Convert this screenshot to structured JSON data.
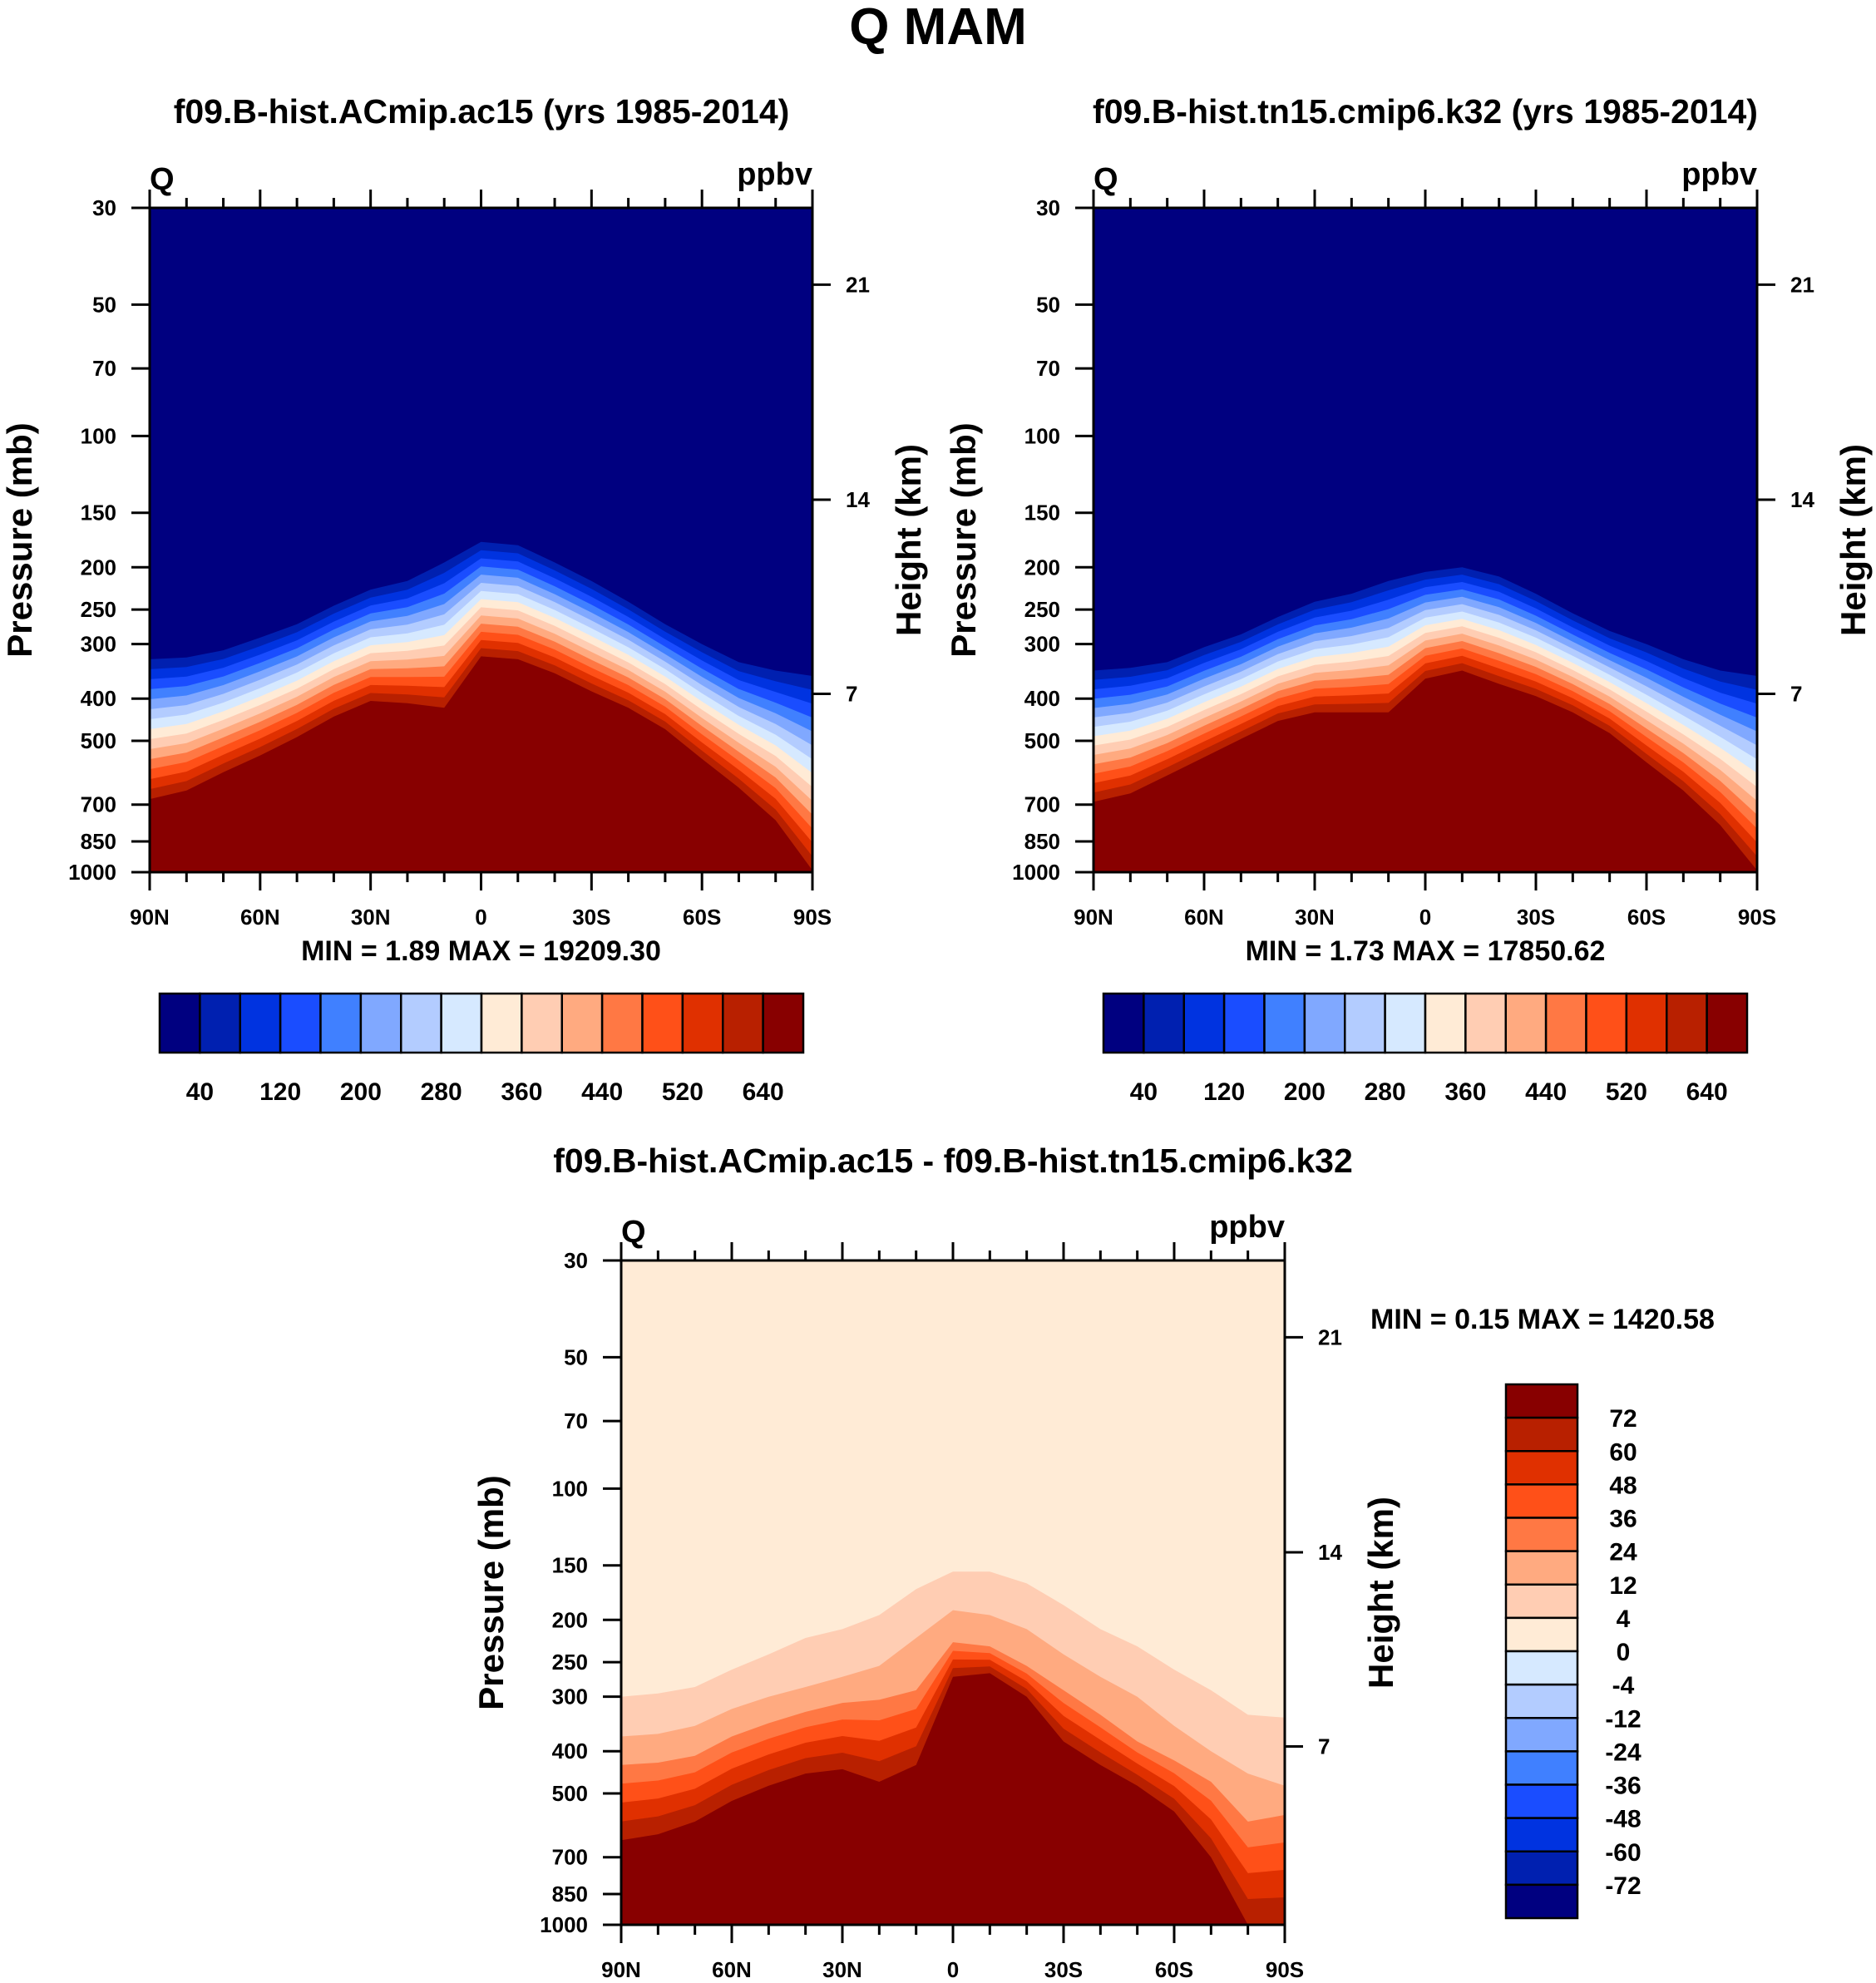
{
  "title": "Q MAM",
  "colors": [
    "#000080",
    "#0020b0",
    "#0033e0",
    "#1a4dff",
    "#4080ff",
    "#80a8ff",
    "#b3ccff",
    "#d6e9ff",
    "#ffebd6",
    "#ffcdb3",
    "#ffaa80",
    "#ff7844",
    "#ff5018",
    "#e03000",
    "#b82000",
    "#880000"
  ],
  "chart_data": [
    {
      "type": "heatmap",
      "subtype": "filled-contour",
      "title": "f09.B-hist.ACmip.ac15 (yrs 1985-2014)",
      "left_label": "Q",
      "right_label": "ppbv",
      "ylabel": "Pressure (mb)",
      "ylabel_right": "Height (km)",
      "stats": "MIN =   1.89  MAX = 19209.30",
      "ylim": [
        1000,
        30
      ],
      "yscale": "log",
      "y_ticks": [
        30,
        50,
        70,
        100,
        150,
        200,
        250,
        300,
        400,
        500,
        700,
        850,
        1000
      ],
      "y_right_ticks": [
        {
          "label": "21",
          "p": 45
        },
        {
          "label": "14",
          "p": 140
        },
        {
          "label": "7",
          "p": 390
        }
      ],
      "x_ticks": [
        "90N",
        "60N",
        "30N",
        "0",
        "30S",
        "60S",
        "90S"
      ],
      "lat": [
        90,
        80,
        70,
        60,
        50,
        40,
        30,
        20,
        10,
        0,
        -10,
        -20,
        -30,
        -40,
        -50,
        -60,
        -70,
        -80,
        -90
      ],
      "contour_40_mb": [
        325,
        322,
        310,
        290,
        270,
        245,
        225,
        215,
        195,
        175,
        178,
        195,
        215,
        240,
        270,
        300,
        330,
        345,
        355
      ],
      "contour_640_mb": [
        680,
        650,
        590,
        540,
        490,
        440,
        405,
        410,
        420,
        320,
        325,
        350,
        385,
        420,
        470,
        550,
        640,
        760,
        990
      ],
      "colorbar_labels": [
        "40",
        "120",
        "200",
        "280",
        "360",
        "440",
        "520",
        "640"
      ]
    },
    {
      "type": "heatmap",
      "subtype": "filled-contour",
      "title": "f09.B-hist.tn15.cmip6.k32 (yrs 1985-2014)",
      "left_label": "Q",
      "right_label": "ppbv",
      "ylabel": "Pressure (mb)",
      "ylabel_right": "Height (km)",
      "stats": "MIN =   1.73  MAX = 17850.62",
      "ylim": [
        1000,
        30
      ],
      "yscale": "log",
      "y_ticks": [
        30,
        50,
        70,
        100,
        150,
        200,
        250,
        300,
        400,
        500,
        700,
        850,
        1000
      ],
      "y_right_ticks": [
        {
          "label": "21",
          "p": 45
        },
        {
          "label": "14",
          "p": 140
        },
        {
          "label": "7",
          "p": 390
        }
      ],
      "x_ticks": [
        "90N",
        "60N",
        "30N",
        "0",
        "30S",
        "60S",
        "90S"
      ],
      "lat": [
        90,
        80,
        70,
        60,
        50,
        40,
        30,
        20,
        10,
        0,
        -10,
        -20,
        -30,
        -40,
        -50,
        -60,
        -70,
        -80,
        -90
      ],
      "contour_40_mb": [
        345,
        340,
        330,
        305,
        285,
        260,
        240,
        230,
        215,
        205,
        200,
        210,
        230,
        255,
        280,
        300,
        325,
        345,
        355
      ],
      "contour_640_mb": [
        690,
        660,
        600,
        545,
        495,
        450,
        430,
        430,
        430,
        360,
        345,
        370,
        395,
        430,
        480,
        560,
        650,
        780,
        990
      ],
      "colorbar_labels": [
        "40",
        "120",
        "200",
        "280",
        "360",
        "440",
        "520",
        "640"
      ]
    },
    {
      "type": "heatmap",
      "subtype": "filled-contour",
      "title": "f09.B-hist.ACmip.ac15 - f09.B-hist.tn15.cmip6.k32",
      "left_label": "Q",
      "right_label": "ppbv",
      "ylabel": "Pressure (mb)",
      "ylabel_right": "Height (km)",
      "stats": "MIN =   0.15  MAX = 1420.58",
      "ylim": [
        1000,
        30
      ],
      "yscale": "log",
      "y_ticks": [
        30,
        50,
        70,
        100,
        150,
        200,
        250,
        300,
        400,
        500,
        700,
        850,
        1000
      ],
      "y_right_ticks": [
        {
          "label": "21",
          "p": 45
        },
        {
          "label": "14",
          "p": 140
        },
        {
          "label": "7",
          "p": 390
        }
      ],
      "x_ticks": [
        "90N",
        "60N",
        "30N",
        "0",
        "30S",
        "60S",
        "90S"
      ],
      "lat": [
        90,
        80,
        70,
        60,
        50,
        40,
        30,
        20,
        10,
        0,
        -10,
        -20,
        -30,
        -40,
        -50,
        -60,
        -70,
        -80,
        -90
      ],
      "contour_4_mb": [
        300,
        295,
        285,
        260,
        240,
        220,
        210,
        195,
        170,
        155,
        155,
        165,
        185,
        210,
        230,
        260,
        290,
        330,
        335
      ],
      "contour_12_mb": [
        370,
        365,
        350,
        320,
        300,
        285,
        270,
        255,
        220,
        190,
        195,
        210,
        240,
        270,
        300,
        350,
        400,
        450,
        480
      ],
      "contour_24_mb": [
        430,
        425,
        410,
        370,
        345,
        325,
        310,
        305,
        290,
        225,
        230,
        255,
        290,
        330,
        380,
        420,
        470,
        580,
        560
      ],
      "contour_72_mb": [
        640,
        620,
        580,
        520,
        480,
        450,
        440,
        470,
        430,
        270,
        265,
        300,
        380,
        430,
        480,
        550,
        700,
        1000,
        1000
      ],
      "colorbar_labels": [
        "72",
        "60",
        "48",
        "36",
        "24",
        "12",
        "4",
        "0",
        "-4",
        "-12",
        "-24",
        "-36",
        "-48",
        "-60",
        "-72"
      ]
    }
  ]
}
